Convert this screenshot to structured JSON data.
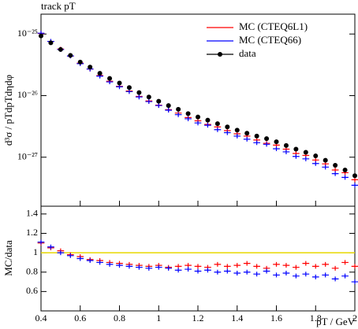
{
  "chart_data": [
    {
      "type": "scatter",
      "title": "track pT",
      "ylabel": "d³σ / pTdpTdηdφ",
      "log_y": true,
      "legend": "upper right",
      "x": [
        0.4,
        0.45,
        0.5,
        0.55,
        0.6,
        0.65,
        0.7,
        0.75,
        0.8,
        0.85,
        0.9,
        0.95,
        1.0,
        1.05,
        1.1,
        1.15,
        1.2,
        1.25,
        1.3,
        1.35,
        1.4,
        1.45,
        1.5,
        1.55,
        1.6,
        1.65,
        1.7,
        1.75,
        1.8,
        1.85,
        1.9,
        1.95,
        2.0
      ],
      "xlim": [
        0.4,
        2.0
      ],
      "ylim": [
        1.6e-28,
        2.1e-25
      ],
      "yticks": [
        {
          "value": 1e-25,
          "label": "10⁻²⁵"
        },
        {
          "value": 1e-26,
          "label": "10⁻²⁶"
        },
        {
          "value": 1e-27,
          "label": "10⁻²⁷"
        }
      ],
      "series": [
        {
          "name": "MC (CTEQ6L1)",
          "color": "#ff0000",
          "marker": "cross",
          "values": [
            1.02e-25,
            7.6e-26,
            5.7e-26,
            4.4e-26,
            3.36e-26,
            2.7e-26,
            2.12e-26,
            1.71e-26,
            1.42e-26,
            1.19e-26,
            9.7e-27,
            8.2e-27,
            7e-27,
            5.9e-27,
            5.2e-27,
            4.4e-27,
            3.9e-27,
            3.4e-27,
            3.1e-27,
            2.7e-27,
            2.4e-27,
            2.2e-27,
            1.9e-27,
            1.68e-27,
            1.57e-27,
            1.35e-27,
            1.15e-27,
            1.07e-27,
            9e-28,
            7.8e-28,
            6.2e-28,
            5.6e-28,
            4.3e-28
          ]
        },
        {
          "name": "MC (CTEQ66)",
          "color": "#0000ff",
          "marker": "cross",
          "values": [
            1.03e-25,
            7.6e-26,
            5.6e-26,
            4.4e-26,
            3.3e-26,
            2.7e-26,
            2.07e-26,
            1.67e-26,
            1.39e-26,
            1.16e-26,
            9.5e-27,
            8e-27,
            6.9e-27,
            5.8e-27,
            4.9e-27,
            4.2e-27,
            3.6e-27,
            3.3e-27,
            2.8e-27,
            2.5e-27,
            2.2e-27,
            1.96e-27,
            1.72e-27,
            1.62e-27,
            1.37e-27,
            1.22e-27,
            1.03e-27,
            9.4e-28,
            7.9e-28,
            6.9e-28,
            5.4e-28,
            4.7e-28,
            3.5e-28
          ]
        },
        {
          "name": "data",
          "color": "#000000",
          "marker": "dot",
          "values": [
            9.3e-26,
            7.2e-26,
            5.6e-26,
            4.5e-26,
            3.5e-26,
            2.9e-26,
            2.3e-26,
            1.9e-26,
            1.6e-26,
            1.35e-26,
            1.12e-26,
            9.5e-27,
            8.1e-27,
            6.9e-27,
            6e-27,
            5.1e-27,
            4.5e-27,
            4e-27,
            3.5e-27,
            3.1e-27,
            2.75e-27,
            2.45e-27,
            2.2e-27,
            2e-27,
            1.78e-27,
            1.55e-27,
            1.35e-27,
            1.2e-27,
            1.05e-27,
            8.9e-28,
            7.4e-28,
            6.2e-28,
            5e-28
          ]
        }
      ]
    },
    {
      "type": "scatter",
      "ylabel": "MC/data",
      "xlabel": "pT / GeV",
      "log_y": false,
      "x": [
        0.4,
        0.45,
        0.5,
        0.55,
        0.6,
        0.65,
        0.7,
        0.75,
        0.8,
        0.85,
        0.9,
        0.95,
        1.0,
        1.05,
        1.1,
        1.15,
        1.2,
        1.25,
        1.3,
        1.35,
        1.4,
        1.45,
        1.5,
        1.55,
        1.6,
        1.65,
        1.7,
        1.75,
        1.8,
        1.85,
        1.9,
        1.95,
        2.0
      ],
      "xlim": [
        0.4,
        2.0
      ],
      "xticks": [
        0.4,
        0.6,
        0.8,
        1,
        1.2,
        1.4,
        1.6,
        1.8,
        2
      ],
      "ylim": [
        0.4,
        1.48
      ],
      "yticks": [
        0.6,
        0.8,
        1,
        1.2,
        1.4
      ],
      "reference": {
        "value": 1,
        "color": "#e8d800"
      },
      "series": [
        {
          "color": "#ff0000",
          "marker": "cross",
          "values": [
            1.1,
            1.05,
            1.02,
            0.98,
            0.96,
            0.93,
            0.92,
            0.9,
            0.89,
            0.88,
            0.87,
            0.86,
            0.87,
            0.85,
            0.86,
            0.87,
            0.86,
            0.85,
            0.88,
            0.86,
            0.87,
            0.89,
            0.86,
            0.84,
            0.88,
            0.87,
            0.85,
            0.89,
            0.86,
            0.88,
            0.84,
            0.9,
            0.86
          ]
        },
        {
          "color": "#0000ff",
          "marker": "cross",
          "values": [
            1.11,
            1.06,
            1.0,
            0.97,
            0.94,
            0.92,
            0.9,
            0.88,
            0.87,
            0.86,
            0.85,
            0.84,
            0.85,
            0.84,
            0.82,
            0.83,
            0.81,
            0.82,
            0.8,
            0.81,
            0.79,
            0.8,
            0.78,
            0.81,
            0.77,
            0.79,
            0.76,
            0.78,
            0.75,
            0.77,
            0.73,
            0.76,
            0.7
          ]
        }
      ]
    }
  ]
}
